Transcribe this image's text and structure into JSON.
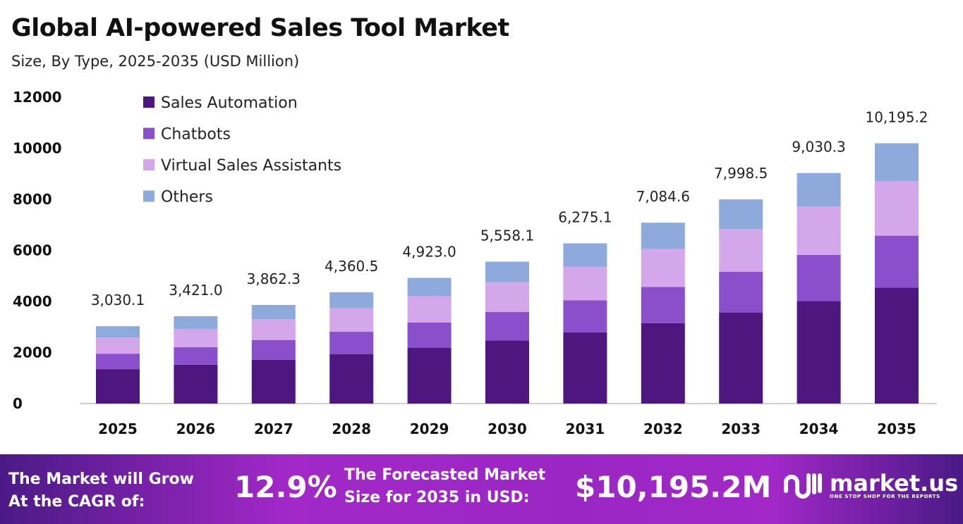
{
  "chart_data": {
    "type": "bar",
    "stacked": true,
    "title": "Global AI-powered Sales Tool Market",
    "subtitle": "Size, By Type, 2025-2035 (USD Million)",
    "categories": [
      "2025",
      "2026",
      "2027",
      "2028",
      "2029",
      "2030",
      "2031",
      "2032",
      "2033",
      "2034",
      "2035"
    ],
    "ylim": [
      0,
      12000
    ],
    "yticks": [
      "0",
      "2000",
      "4000",
      "6000",
      "8000",
      "10000",
      "12000"
    ],
    "grid": false,
    "legend_position": "top-left",
    "series": [
      {
        "name": "Sales Automation",
        "color": "#4e1780",
        "values": [
          1348.4,
          1522.3,
          1718.7,
          1940.4,
          2190.7,
          2473.4,
          2792.4,
          3152.6,
          3559.3,
          4018.5,
          4536.9
        ]
      },
      {
        "name": "Chatbots",
        "color": "#8b4fcb",
        "values": [
          606.0,
          684.2,
          772.5,
          872.1,
          984.6,
          1111.6,
          1255.0,
          1416.9,
          1599.7,
          1806.1,
          2039.0
        ]
      },
      {
        "name": "Virtual Sales Assistants",
        "color": "#d4a6ea",
        "values": [
          636.3,
          718.4,
          811.1,
          915.7,
          1033.8,
          1167.2,
          1317.8,
          1487.8,
          1679.7,
          1896.4,
          2141.0
        ]
      },
      {
        "name": "Others",
        "color": "#8ea9db",
        "values": [
          439.4,
          496.1,
          560.0,
          632.3,
          713.9,
          805.9,
          909.9,
          1027.3,
          1159.8,
          1309.3,
          1478.3
        ]
      }
    ],
    "totals": [
      3030.1,
      3421.0,
      3862.3,
      4360.5,
      4923.0,
      5558.1,
      6275.1,
      7084.6,
      7998.5,
      9030.3,
      10195.2
    ],
    "total_labels": [
      "3,030.1",
      "3,421.0",
      "3,862.3",
      "4,360.5",
      "4,923.0",
      "5,558.1",
      "6,275.1",
      "7,084.6",
      "7,998.5",
      "9,030.3",
      "10,195.2"
    ]
  },
  "banner": {
    "cagr_label_line1": "The Market will Grow",
    "cagr_label_line2": "At the CAGR of:",
    "cagr_value": "12.9%",
    "forecast_label_line1": "The Forecasted Market",
    "forecast_label_line2": "Size for 2035 in USD:",
    "forecast_value": "$10,195.2M",
    "logo_text": "market.us",
    "logo_tagline": "ONE STOP SHOP FOR THE REPORTS"
  }
}
